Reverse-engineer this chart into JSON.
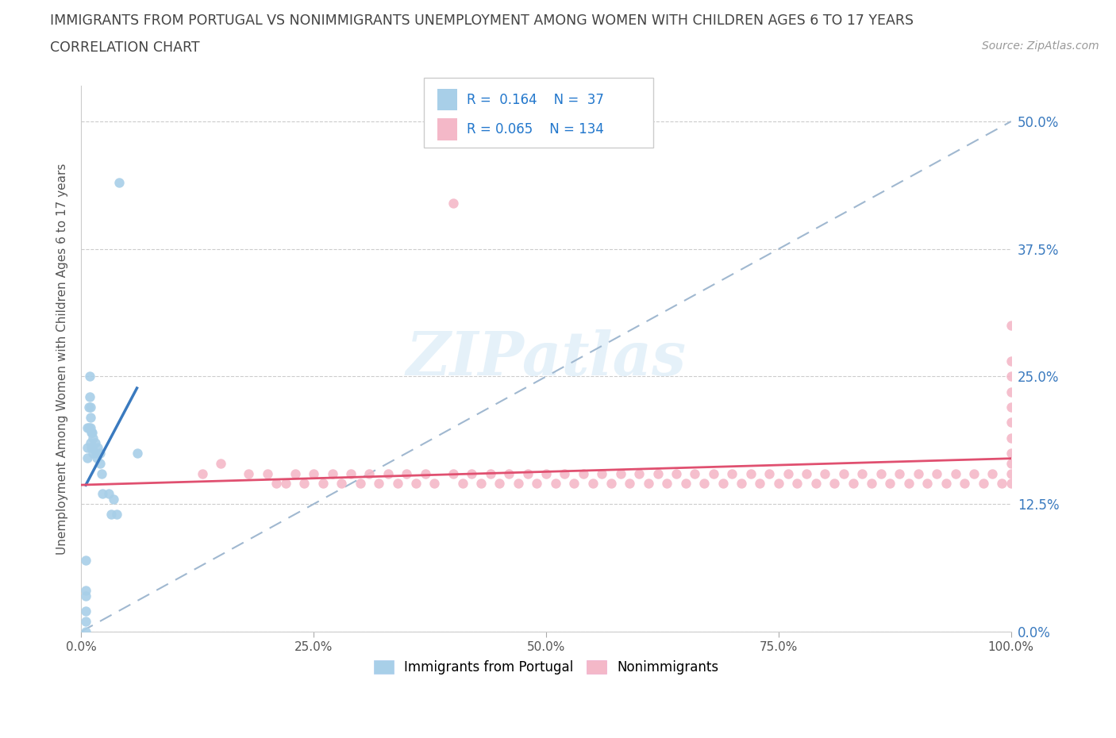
{
  "title_line1": "IMMIGRANTS FROM PORTUGAL VS NONIMMIGRANTS UNEMPLOYMENT AMONG WOMEN WITH CHILDREN AGES 6 TO 17 YEARS",
  "title_line2": "CORRELATION CHART",
  "source": "Source: ZipAtlas.com",
  "ylabel_label": "Unemployment Among Women with Children Ages 6 to 17 years",
  "xlim": [
    0.0,
    1.0
  ],
  "ylim": [
    0.0,
    0.535
  ],
  "xtick_vals": [
    0.0,
    0.25,
    0.5,
    0.75,
    1.0
  ],
  "xtick_labels": [
    "0.0%",
    "25.0%",
    "50.0%",
    "75.0%",
    "100.0%"
  ],
  "ytick_vals": [
    0.0,
    0.125,
    0.25,
    0.375,
    0.5
  ],
  "ytick_labels": [
    "0.0%",
    "12.5%",
    "25.0%",
    "37.5%",
    "50.0%"
  ],
  "watermark": "ZIPatlas",
  "color_blue": "#a8cfe8",
  "color_pink": "#f4b8c8",
  "color_trendline_blue": "#3a7abf",
  "color_trendline_pink": "#e05070",
  "color_dashed_line": "#a0b8d0",
  "immigrants_x": [
    0.005,
    0.005,
    0.005,
    0.005,
    0.005,
    0.005,
    0.007,
    0.007,
    0.007,
    0.008,
    0.008,
    0.009,
    0.009,
    0.01,
    0.01,
    0.01,
    0.01,
    0.011,
    0.011,
    0.012,
    0.012,
    0.013,
    0.013,
    0.015,
    0.016,
    0.017,
    0.018,
    0.02,
    0.02,
    0.022,
    0.023,
    0.03,
    0.032,
    0.035,
    0.038,
    0.041,
    0.06
  ],
  "immigrants_y": [
    0.07,
    0.04,
    0.035,
    0.02,
    0.01,
    0.0,
    0.2,
    0.18,
    0.17,
    0.22,
    0.2,
    0.25,
    0.23,
    0.22,
    0.21,
    0.2,
    0.185,
    0.195,
    0.18,
    0.195,
    0.18,
    0.19,
    0.175,
    0.185,
    0.175,
    0.17,
    0.18,
    0.175,
    0.165,
    0.155,
    0.135,
    0.135,
    0.115,
    0.13,
    0.115,
    0.44,
    0.175
  ],
  "nonimmigrants_x": [
    0.13,
    0.15,
    0.18,
    0.2,
    0.21,
    0.22,
    0.23,
    0.24,
    0.25,
    0.26,
    0.27,
    0.28,
    0.29,
    0.3,
    0.31,
    0.32,
    0.33,
    0.34,
    0.35,
    0.36,
    0.37,
    0.38,
    0.4,
    0.4,
    0.41,
    0.42,
    0.43,
    0.44,
    0.45,
    0.46,
    0.47,
    0.48,
    0.49,
    0.5,
    0.51,
    0.52,
    0.53,
    0.54,
    0.55,
    0.56,
    0.57,
    0.58,
    0.59,
    0.6,
    0.61,
    0.62,
    0.63,
    0.64,
    0.65,
    0.66,
    0.67,
    0.68,
    0.69,
    0.7,
    0.71,
    0.72,
    0.73,
    0.74,
    0.75,
    0.76,
    0.77,
    0.78,
    0.79,
    0.8,
    0.81,
    0.82,
    0.83,
    0.84,
    0.85,
    0.86,
    0.87,
    0.88,
    0.89,
    0.9,
    0.91,
    0.92,
    0.93,
    0.94,
    0.95,
    0.96,
    0.97,
    0.98,
    0.99,
    1.0,
    1.0,
    1.0,
    1.0,
    1.0,
    1.0,
    1.0,
    1.0,
    1.0,
    1.0,
    1.0
  ],
  "nonimmigrants_y": [
    0.155,
    0.165,
    0.155,
    0.155,
    0.145,
    0.145,
    0.155,
    0.145,
    0.155,
    0.145,
    0.155,
    0.145,
    0.155,
    0.145,
    0.155,
    0.145,
    0.155,
    0.145,
    0.155,
    0.145,
    0.155,
    0.145,
    0.42,
    0.155,
    0.145,
    0.155,
    0.145,
    0.155,
    0.145,
    0.155,
    0.145,
    0.155,
    0.145,
    0.155,
    0.145,
    0.155,
    0.145,
    0.155,
    0.145,
    0.155,
    0.145,
    0.155,
    0.145,
    0.155,
    0.145,
    0.155,
    0.145,
    0.155,
    0.145,
    0.155,
    0.145,
    0.155,
    0.145,
    0.155,
    0.145,
    0.155,
    0.145,
    0.155,
    0.145,
    0.155,
    0.145,
    0.155,
    0.145,
    0.155,
    0.145,
    0.155,
    0.145,
    0.155,
    0.145,
    0.155,
    0.145,
    0.155,
    0.145,
    0.155,
    0.145,
    0.155,
    0.145,
    0.155,
    0.145,
    0.155,
    0.145,
    0.155,
    0.145,
    0.145,
    0.155,
    0.165,
    0.175,
    0.19,
    0.205,
    0.22,
    0.235,
    0.25,
    0.265,
    0.3
  ]
}
